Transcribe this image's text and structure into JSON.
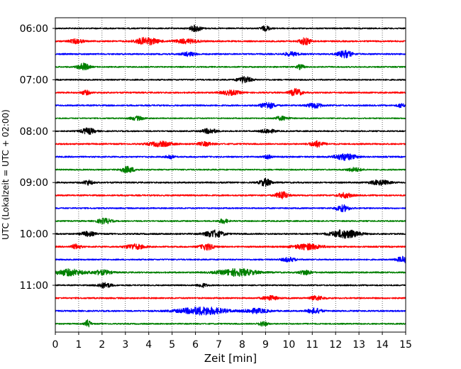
{
  "chart_data": {
    "type": "line",
    "title": "",
    "xlabel": "Zeit  [min]",
    "ylabel": "UTC (Lokalzeit = UTC + 02:00)",
    "xlim": [
      0,
      15
    ],
    "x_ticks": [
      0,
      1,
      2,
      3,
      4,
      5,
      6,
      7,
      8,
      9,
      10,
      11,
      12,
      13,
      14,
      15
    ],
    "y_tick_labels": [
      "06:00",
      "07:00",
      "08:00",
      "09:00",
      "10:00",
      "11:00"
    ],
    "y_tick_rows": [
      0,
      4,
      8,
      12,
      16,
      20
    ],
    "grid": "vertical dotted at every minute",
    "trace_minutes": 15,
    "trace_colors": [
      "#000000",
      "#ff0000",
      "#0000ff",
      "#008000"
    ],
    "traces": [
      {
        "start": "06:00",
        "noise": 0.9,
        "bursts": [
          [
            6.0,
            1.9,
            0.25
          ],
          [
            9.0,
            1.5,
            0.2
          ]
        ]
      },
      {
        "start": "06:15",
        "noise": 1.0,
        "bursts": [
          [
            0.9,
            1.3,
            0.3
          ],
          [
            3.9,
            2.2,
            0.5
          ],
          [
            5.6,
            1.3,
            0.5
          ],
          [
            10.7,
            2.2,
            0.25
          ]
        ]
      },
      {
        "start": "06:30",
        "noise": 1.0,
        "bursts": [
          [
            5.7,
            1.2,
            0.3
          ],
          [
            10.1,
            1.2,
            0.3
          ],
          [
            12.4,
            2.2,
            0.3
          ]
        ]
      },
      {
        "start": "06:45",
        "noise": 0.9,
        "bursts": [
          [
            1.2,
            2.3,
            0.25
          ],
          [
            10.5,
            1.5,
            0.15
          ]
        ]
      },
      {
        "start": "07:00",
        "noise": 0.9,
        "bursts": [
          [
            8.1,
            2.0,
            0.3
          ]
        ]
      },
      {
        "start": "07:15",
        "noise": 1.0,
        "bursts": [
          [
            1.3,
            1.3,
            0.2
          ],
          [
            7.5,
            1.4,
            0.4
          ],
          [
            10.3,
            2.3,
            0.25
          ]
        ]
      },
      {
        "start": "07:30",
        "noise": 1.0,
        "bursts": [
          [
            9.1,
            2.0,
            0.3
          ],
          [
            11.1,
            1.6,
            0.3
          ],
          [
            14.8,
            1.3,
            0.15
          ]
        ]
      },
      {
        "start": "07:45",
        "noise": 0.8,
        "bursts": [
          [
            3.5,
            1.2,
            0.3
          ],
          [
            9.7,
            1.2,
            0.3
          ]
        ]
      },
      {
        "start": "08:00",
        "noise": 0.9,
        "bursts": [
          [
            1.4,
            1.9,
            0.3
          ],
          [
            6.6,
            1.6,
            0.3
          ],
          [
            9.1,
            1.3,
            0.3
          ]
        ]
      },
      {
        "start": "08:15",
        "noise": 1.0,
        "bursts": [
          [
            4.5,
            1.5,
            0.5
          ],
          [
            6.4,
            1.2,
            0.3
          ],
          [
            11.2,
            1.8,
            0.3
          ]
        ]
      },
      {
        "start": "08:30",
        "noise": 1.0,
        "bursts": [
          [
            4.9,
            1.4,
            0.15
          ],
          [
            9.1,
            1.2,
            0.15
          ],
          [
            12.4,
            2.0,
            0.45
          ]
        ]
      },
      {
        "start": "08:45",
        "noise": 0.9,
        "bursts": [
          [
            3.1,
            1.9,
            0.3
          ],
          [
            12.8,
            1.2,
            0.3
          ]
        ]
      },
      {
        "start": "09:00",
        "noise": 1.0,
        "bursts": [
          [
            1.4,
            1.5,
            0.2
          ],
          [
            9.0,
            2.3,
            0.25
          ],
          [
            13.9,
            1.5,
            0.4
          ]
        ]
      },
      {
        "start": "09:15",
        "noise": 1.0,
        "bursts": [
          [
            9.7,
            2.4,
            0.25
          ],
          [
            12.4,
            1.5,
            0.3
          ]
        ]
      },
      {
        "start": "09:30",
        "noise": 0.9,
        "bursts": [
          [
            12.3,
            2.0,
            0.3
          ]
        ]
      },
      {
        "start": "09:45",
        "noise": 0.9,
        "bursts": [
          [
            2.1,
            1.7,
            0.3
          ],
          [
            7.2,
            1.4,
            0.2
          ]
        ]
      },
      {
        "start": "10:00",
        "noise": 1.0,
        "bursts": [
          [
            1.4,
            1.4,
            0.3
          ],
          [
            6.8,
            2.2,
            0.4
          ],
          [
            12.4,
            2.6,
            0.6
          ]
        ]
      },
      {
        "start": "10:15",
        "noise": 1.0,
        "bursts": [
          [
            0.9,
            1.5,
            0.2
          ],
          [
            3.4,
            1.6,
            0.4
          ],
          [
            6.5,
            1.9,
            0.3
          ],
          [
            10.8,
            1.8,
            0.6
          ]
        ]
      },
      {
        "start": "10:30",
        "noise": 0.9,
        "bursts": [
          [
            10.0,
            1.3,
            0.3
          ],
          [
            14.9,
            1.8,
            0.3
          ]
        ]
      },
      {
        "start": "10:45",
        "noise": 1.0,
        "bursts": [
          [
            0.6,
            2.0,
            0.6
          ],
          [
            2.0,
            1.4,
            0.4
          ],
          [
            7.8,
            2.2,
            0.8
          ],
          [
            10.7,
            1.5,
            0.25
          ]
        ]
      },
      {
        "start": "11:00",
        "noise": 0.9,
        "bursts": [
          [
            2.1,
            1.6,
            0.3
          ],
          [
            6.3,
            1.2,
            0.2
          ]
        ]
      },
      {
        "start": "11:15",
        "noise": 1.0,
        "bursts": [
          [
            9.2,
            1.4,
            0.3
          ],
          [
            11.2,
            1.3,
            0.3
          ]
        ]
      },
      {
        "start": "11:30",
        "noise": 1.0,
        "bursts": [
          [
            6.3,
            2.4,
            1.0
          ],
          [
            8.6,
            1.4,
            0.5
          ],
          [
            11.1,
            1.6,
            0.3
          ]
        ]
      },
      {
        "start": "11:45",
        "noise": 0.9,
        "bursts": [
          [
            1.4,
            2.4,
            0.12
          ],
          [
            8.9,
            1.4,
            0.2
          ]
        ]
      }
    ]
  }
}
